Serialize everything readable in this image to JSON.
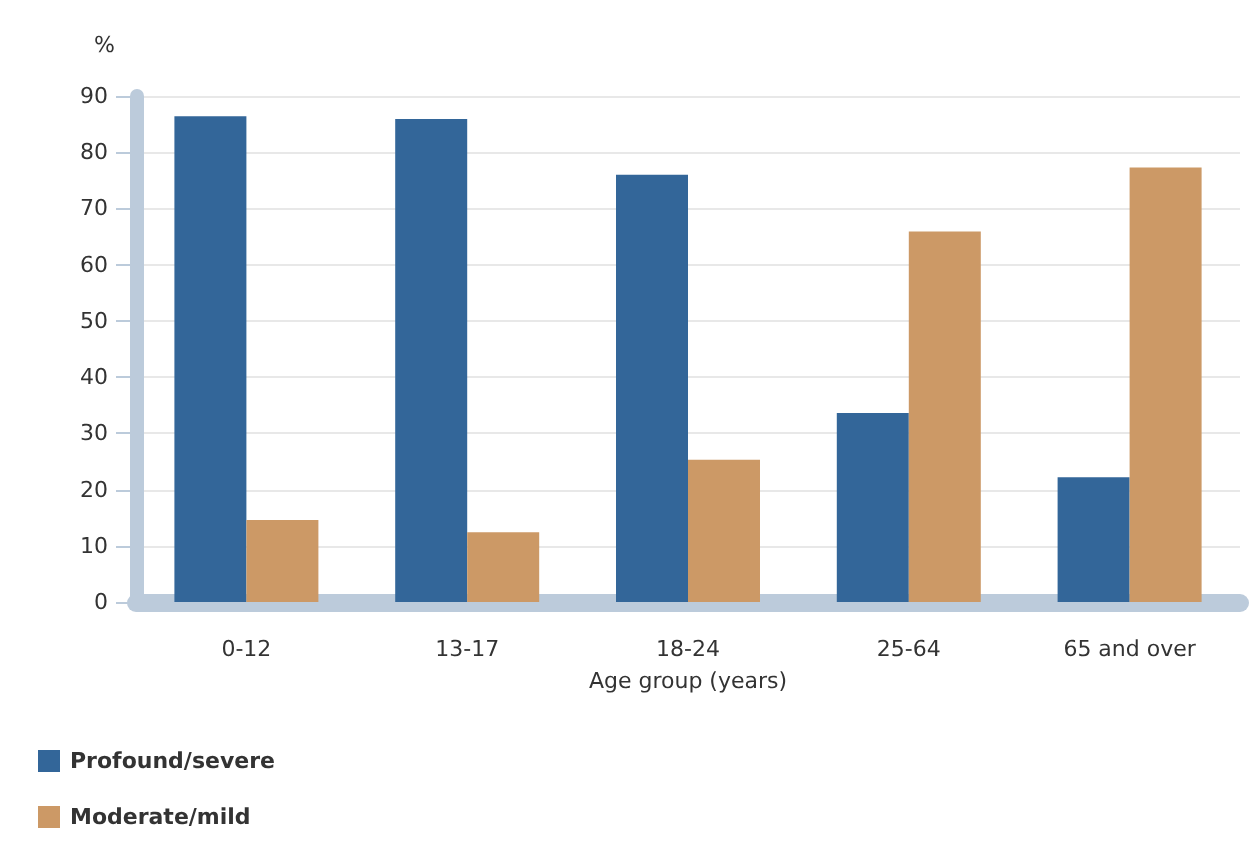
{
  "chart_data": {
    "type": "bar",
    "xlabel": "Age group (years)",
    "ylabel": "%",
    "categories": [
      "0-12",
      "13-17",
      "18-24",
      "25-64",
      "65 and over"
    ],
    "series": [
      {
        "name": "Profound/severe",
        "color": "#336699",
        "values": [
          86.4,
          85.9,
          76.0,
          33.6,
          22.2
        ]
      },
      {
        "name": "Moderate/mild",
        "color": "#cc9966",
        "values": [
          14.6,
          12.4,
          25.3,
          65.9,
          77.3
        ]
      }
    ],
    "ylim": [
      0,
      90
    ],
    "yticks": [
      0,
      10,
      20,
      30,
      40,
      50,
      60,
      70,
      80,
      90
    ],
    "grid": "y",
    "legend": "bottom left"
  }
}
